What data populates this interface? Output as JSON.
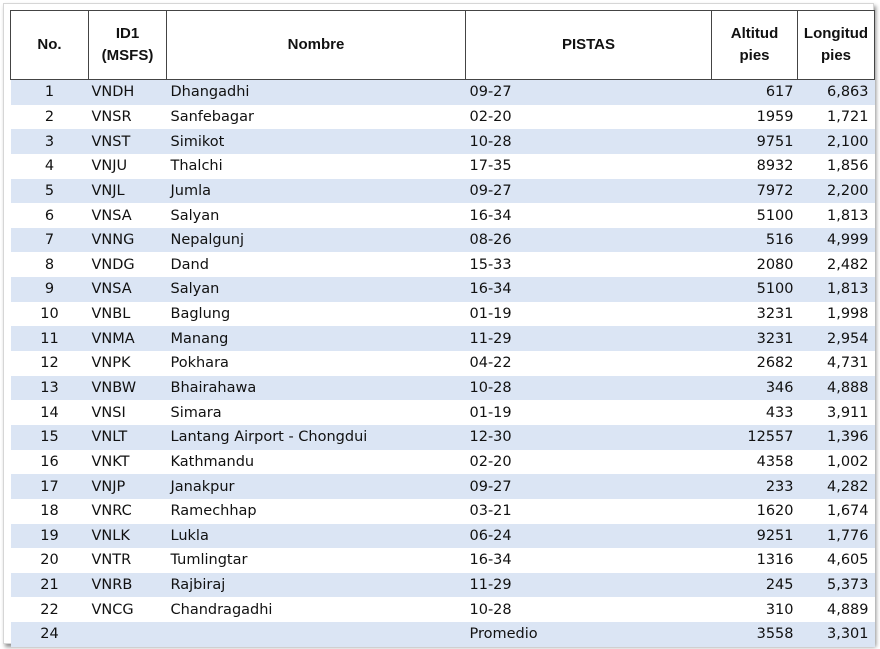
{
  "headers": {
    "no": "No.",
    "id1_line1": "ID1",
    "id1_line2": "(MSFS)",
    "nombre": "Nombre",
    "pistas": "PISTAS",
    "alt_line1": "Altitud",
    "alt_line2": "pies",
    "len_line1": "Longitud",
    "len_line2": "pies"
  },
  "rows": [
    {
      "no": "1",
      "id": "VNDH",
      "name": "Dhangadhi",
      "pistas": "09-27",
      "alt": "617",
      "len": "6,863"
    },
    {
      "no": "2",
      "id": "VNSR",
      "name": "Sanfebagar",
      "pistas": "02-20",
      "alt": "1959",
      "len": "1,721"
    },
    {
      "no": "3",
      "id": "VNST",
      "name": "Simikot",
      "pistas": "10-28",
      "alt": "9751",
      "len": "2,100"
    },
    {
      "no": "4",
      "id": "VNJU",
      "name": "Thalchi",
      "pistas": "17-35",
      "alt": "8932",
      "len": "1,856"
    },
    {
      "no": "5",
      "id": "VNJL",
      "name": "Jumla",
      "pistas": "09-27",
      "alt": "7972",
      "len": "2,200"
    },
    {
      "no": "6",
      "id": "VNSA",
      "name": "Salyan",
      "pistas": "16-34",
      "alt": "5100",
      "len": "1,813"
    },
    {
      "no": "7",
      "id": "VNNG",
      "name": "Nepalgunj",
      "pistas": "08-26",
      "alt": "516",
      "len": "4,999"
    },
    {
      "no": "8",
      "id": "VNDG",
      "name": "Dand",
      "pistas": "15-33",
      "alt": "2080",
      "len": "2,482"
    },
    {
      "no": "9",
      "id": "VNSA",
      "name": "Salyan",
      "pistas": "16-34",
      "alt": "5100",
      "len": "1,813"
    },
    {
      "no": "10",
      "id": "VNBL",
      "name": "Baglung",
      "pistas": "01-19",
      "alt": "3231",
      "len": "1,998"
    },
    {
      "no": "11",
      "id": "VNMA",
      "name": "Manang",
      "pistas": "11-29",
      "alt": "3231",
      "len": "2,954"
    },
    {
      "no": "12",
      "id": "VNPK",
      "name": "Pokhara",
      "pistas": "04-22",
      "alt": "2682",
      "len": "4,731"
    },
    {
      "no": "13",
      "id": "VNBW",
      "name": "Bhairahawa",
      "pistas": "10-28",
      "alt": "346",
      "len": "4,888"
    },
    {
      "no": "14",
      "id": "VNSI",
      "name": "Simara",
      "pistas": "01-19",
      "alt": "433",
      "len": "3,911"
    },
    {
      "no": "15",
      "id": "VNLT",
      "name": " Lantang Airport - Chongdui",
      "pistas": "12-30",
      "alt": "12557",
      "len": "1,396"
    },
    {
      "no": "16",
      "id": "VNKT",
      "name": "Kathmandu",
      "pistas": "02-20",
      "alt": "4358",
      "len": "1,002"
    },
    {
      "no": "17",
      "id": "VNJP",
      "name": "Janakpur",
      "pistas": "09-27",
      "alt": "233",
      "len": "4,282"
    },
    {
      "no": "18",
      "id": "VNRC",
      "name": "Ramechhap",
      "pistas": "03-21",
      "alt": "1620",
      "len": "1,674"
    },
    {
      "no": "19",
      "id": "VNLK",
      "name": "Lukla",
      "pistas": "06-24",
      "alt": "9251",
      "len": "1,776"
    },
    {
      "no": "20",
      "id": "VNTR",
      "name": "Tumlingtar",
      "pistas": "16-34",
      "alt": "1316",
      "len": "4,605"
    },
    {
      "no": "21",
      "id": "VNRB",
      "name": "Rajbiraj",
      "pistas": "11-29",
      "alt": "245",
      "len": "5,373"
    },
    {
      "no": "22",
      "id": "VNCG",
      "name": "Chandragadhi",
      "pistas": "10-28",
      "alt": "310",
      "len": "4,889"
    },
    {
      "no": "24",
      "id": "",
      "name": "",
      "pistas": "Promedio",
      "alt": "3558",
      "len": "3,301"
    }
  ],
  "colors": {
    "row_odd": "#dbe5f4",
    "row_even": "#ffffff",
    "header_border": "#444444"
  }
}
